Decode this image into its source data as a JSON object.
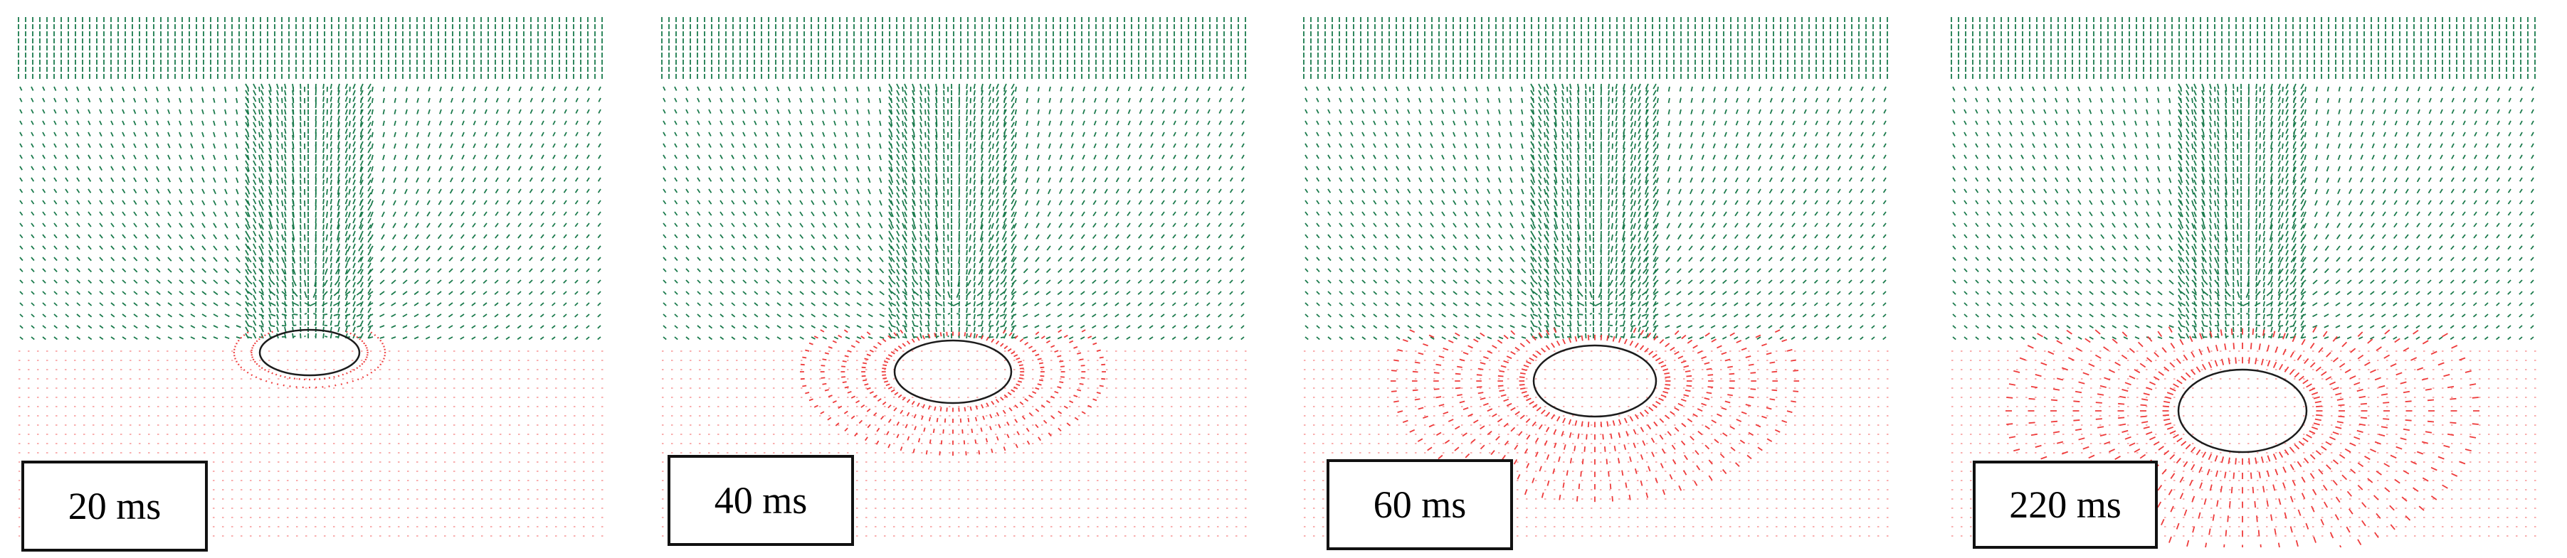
{
  "colors": {
    "upper_fluid": "#1a7a4c",
    "lower_fluid": "#ee3b3b",
    "outline": "#1c1c1c",
    "background": "#ffffff"
  },
  "panels": [
    {
      "time_label": "20 ms",
      "bubble_stage": 0
    },
    {
      "time_label": "40 ms",
      "bubble_stage": 1
    },
    {
      "time_label": "60 ms",
      "bubble_stage": 2
    },
    {
      "time_label": "220 ms",
      "bubble_stage": 3
    }
  ]
}
